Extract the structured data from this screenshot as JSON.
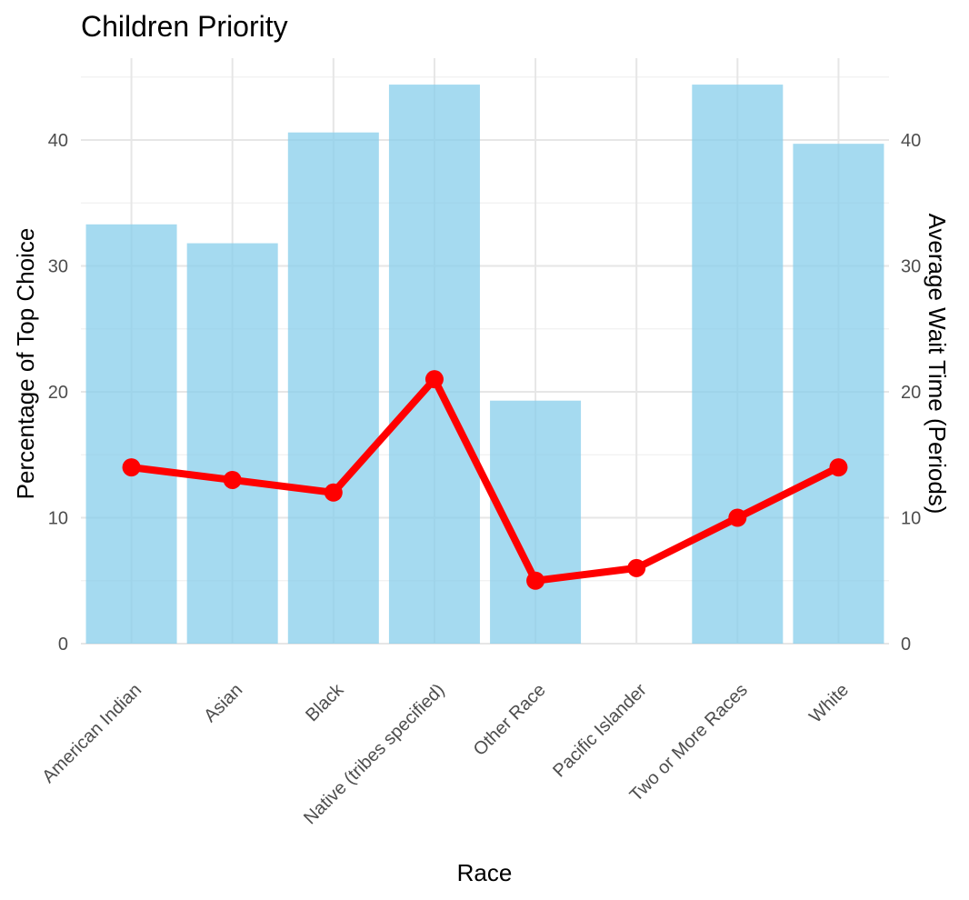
{
  "chart_data": {
    "type": "bar",
    "title": "Children Priority",
    "xlabel": "Race",
    "ylabel": "Percentage of Top Choice",
    "y2label": "Average Wait Time (Periods)",
    "categories": [
      "American Indian",
      "Asian",
      "Black",
      "Native (tribes specified)",
      "Other Race",
      "Pacific Islander",
      "Two or More Races",
      "White"
    ],
    "series": [
      {
        "type": "bar",
        "axis": "left",
        "color": "#87CEEB",
        "values": [
          33.3,
          31.8,
          40.6,
          44.4,
          19.3,
          0,
          44.4,
          39.7
        ]
      },
      {
        "type": "line",
        "axis": "right",
        "color": "#FF0000",
        "values": [
          14,
          13,
          12,
          21,
          5,
          6,
          10,
          14
        ]
      }
    ],
    "ylim": [
      0,
      45
    ],
    "y2lim": [
      0,
      45
    ],
    "yticks": [
      0,
      10,
      20,
      30,
      40
    ],
    "y2ticks": [
      0,
      10,
      20,
      30,
      40
    ],
    "grid": true,
    "legend": "none"
  }
}
